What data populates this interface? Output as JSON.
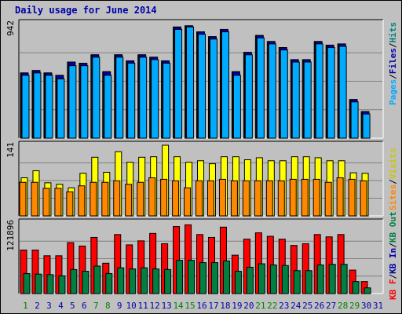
{
  "title": "Daily usage for June 2014",
  "colors": {
    "pages": "#00aaff",
    "files": "#0000aa",
    "hits": "#008080",
    "visits": "#ffff00",
    "sites": "#ff8800",
    "kb_in": "#ff0000",
    "kb_out": "#008040",
    "days_weekday": "#0000aa",
    "days_weekend": "#008000",
    "background": "#c0c0c0"
  },
  "chart_data": [
    {
      "type": "bar",
      "panel": "top",
      "max_label": "942",
      "ylim": [
        0,
        942
      ],
      "categories": [
        "1",
        "2",
        "3",
        "4",
        "5",
        "6",
        "7",
        "8",
        "9",
        "10",
        "11",
        "12",
        "13",
        "14",
        "15",
        "16",
        "17",
        "18",
        "19",
        "20",
        "21",
        "22",
        "23",
        "24",
        "25",
        "26",
        "27",
        "28",
        "29",
        "30",
        "31"
      ],
      "weekend_days": [
        "1",
        "7",
        "8",
        "14",
        "15",
        "21",
        "22",
        "28",
        "29"
      ],
      "legend": [
        "Pages",
        "Files",
        "Hits"
      ],
      "series": [
        {
          "name": "Hits",
          "values": [
            540,
            560,
            540,
            520,
            630,
            620,
            690,
            550,
            690,
            640,
            690,
            670,
            640,
            920,
            930,
            880,
            840,
            900,
            550,
            710,
            850,
            800,
            750,
            650,
            650,
            800,
            770,
            780,
            320,
            220,
            0
          ]
        },
        {
          "name": "Files",
          "values": [
            540,
            560,
            540,
            520,
            630,
            620,
            690,
            550,
            690,
            640,
            690,
            670,
            640,
            920,
            930,
            880,
            840,
            900,
            550,
            710,
            850,
            800,
            750,
            650,
            650,
            800,
            770,
            780,
            320,
            220,
            0
          ]
        },
        {
          "name": "Pages",
          "values": [
            520,
            540,
            520,
            490,
            600,
            600,
            670,
            520,
            670,
            620,
            670,
            650,
            620,
            900,
            920,
            860,
            820,
            880,
            520,
            690,
            830,
            780,
            730,
            630,
            630,
            780,
            750,
            760,
            300,
            200,
            0
          ]
        }
      ]
    },
    {
      "type": "bar",
      "panel": "middle",
      "max_label": "141",
      "ylim": [
        0,
        141
      ],
      "categories": [
        "1",
        "2",
        "3",
        "4",
        "5",
        "6",
        "7",
        "8",
        "9",
        "10",
        "11",
        "12",
        "13",
        "14",
        "15",
        "16",
        "17",
        "18",
        "19",
        "20",
        "21",
        "22",
        "23",
        "24",
        "25",
        "26",
        "27",
        "28",
        "29",
        "30",
        "31"
      ],
      "legend": [
        "Sites",
        "Visits"
      ],
      "series": [
        {
          "name": "Visits",
          "values": [
            76,
            90,
            66,
            63,
            56,
            85,
            117,
            87,
            128,
            107,
            117,
            118,
            141,
            118,
            107,
            110,
            104,
            118,
            118,
            112,
            116,
            110,
            110,
            118,
            118,
            116,
            110,
            110,
            86,
            85,
            0
          ]
        },
        {
          "name": "Sites",
          "values": [
            67,
            67,
            55,
            55,
            48,
            60,
            67,
            67,
            70,
            63,
            67,
            76,
            73,
            70,
            56,
            70,
            70,
            73,
            70,
            70,
            70,
            70,
            70,
            73,
            73,
            73,
            67,
            76,
            73,
            70,
            0
          ]
        }
      ]
    },
    {
      "type": "bar",
      "panel": "bottom",
      "max_label": "121896",
      "ylim": [
        0,
        121896
      ],
      "categories": [
        "1",
        "2",
        "3",
        "4",
        "5",
        "6",
        "7",
        "8",
        "9",
        "10",
        "11",
        "12",
        "13",
        "14",
        "15",
        "16",
        "17",
        "18",
        "19",
        "20",
        "21",
        "22",
        "23",
        "24",
        "25",
        "26",
        "27",
        "28",
        "29",
        "30",
        "31"
      ],
      "legend": [
        "KB F",
        "KB In",
        "KB Out"
      ],
      "series": [
        {
          "name": "KB In",
          "values": [
            0,
            0,
            0,
            0,
            0,
            0,
            0,
            0,
            0,
            0,
            0,
            0,
            0,
            0,
            0,
            0,
            0,
            0,
            0,
            0,
            0,
            0,
            0,
            0,
            0,
            0,
            0,
            0,
            0,
            0,
            0
          ]
        },
        {
          "name": "KB F",
          "values": [
            76000,
            76000,
            66000,
            66000,
            89000,
            83000,
            98000,
            53000,
            103000,
            85000,
            92000,
            105000,
            87000,
            117000,
            120000,
            103000,
            98000,
            116000,
            67000,
            95000,
            106000,
            100000,
            95000,
            84000,
            87000,
            103000,
            99000,
            103000,
            41000,
            21000,
            0
          ]
        },
        {
          "name": "KB Out",
          "values": [
            35000,
            34000,
            33000,
            31000,
            42000,
            39000,
            48000,
            35000,
            45000,
            43000,
            45000,
            43000,
            42000,
            58000,
            58000,
            54000,
            54000,
            57000,
            39000,
            46000,
            52000,
            50000,
            49000,
            40000,
            40000,
            50000,
            51000,
            51000,
            21000,
            10000,
            0
          ]
        }
      ]
    }
  ]
}
